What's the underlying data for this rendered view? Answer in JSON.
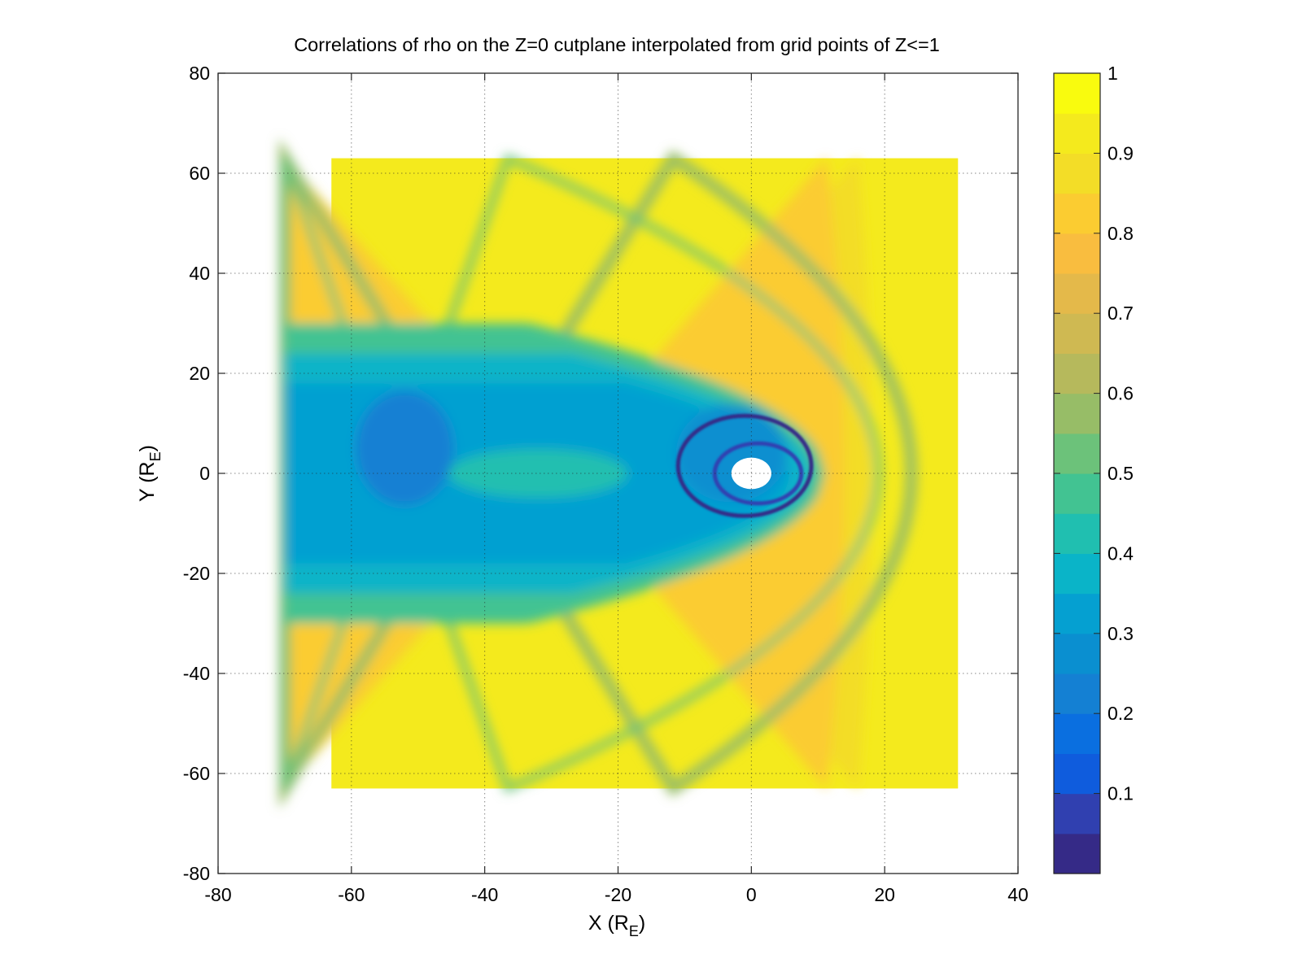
{
  "chart_data": {
    "type": "heatmap",
    "title": "Correlations of rho on the Z=0 cutplane interpolated from grid points of Z<=1",
    "xlabel": {
      "main": "X (R",
      "sub": "E",
      "close": ")"
    },
    "ylabel": {
      "main": "Y (R",
      "sub": "E",
      "close": ")"
    },
    "xlim": [
      -80,
      40
    ],
    "ylim": [
      -80,
      80
    ],
    "x_ticks": [
      -80,
      -60,
      -40,
      -20,
      0,
      20,
      40
    ],
    "y_ticks": [
      -80,
      -60,
      -40,
      -20,
      0,
      20,
      40,
      60,
      80
    ],
    "grid": true,
    "grid_style": "dotted",
    "data_extent": {
      "x": [
        -63,
        31
      ],
      "y": [
        -63,
        63
      ]
    },
    "masked_region": {
      "center": [
        0,
        0
      ],
      "radius": 3
    },
    "colorbar": {
      "range": [
        0,
        1
      ],
      "ticks": [
        0.1,
        0.2,
        0.3,
        0.4,
        0.5,
        0.6,
        0.7,
        0.8,
        0.9,
        1
      ],
      "tick_labels": [
        "0.1",
        "0.2",
        "0.3",
        "0.4",
        "0.5",
        "0.6",
        "0.7",
        "0.8",
        "0.9",
        "1"
      ],
      "levels": 20,
      "colormap": [
        "#352a87",
        "#3040b0",
        "#0f5cdd",
        "#0a6fe0",
        "#1480d3",
        "#0a8fd0",
        "#05a0d1",
        "#0ab4c8",
        "#20bfb0",
        "#42c392",
        "#6cc27a",
        "#97bd67",
        "#b6b95c",
        "#cfb952",
        "#e4b94a",
        "#f9bd3f",
        "#fbcc31",
        "#f3dd27",
        "#f4ea1d",
        "#f9fb0e"
      ]
    },
    "field_description": "correlation of rho; low values (~0.2-0.45) in the magnetotail wake along negative X, a narrow ring of minimum (~0) near the origin, a green band (~0.5-0.7) along the bow-shock parabola, orange/yellow (0.75-0.95) in the magnetosheath and upstream solar wind",
    "field_values": {
      "tail_core": 0.3,
      "tail_edge": 0.45,
      "ring_min": 0.03,
      "bow_band": 0.58,
      "sheath": 0.82,
      "upstream": 0.93
    }
  }
}
